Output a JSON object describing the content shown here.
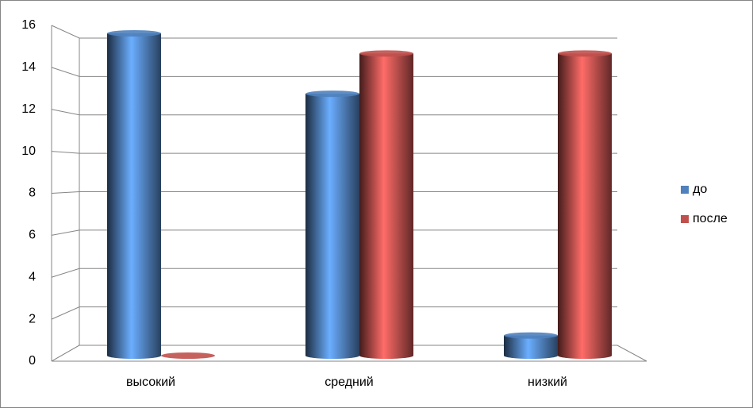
{
  "chart_data": {
    "type": "bar",
    "categories": [
      "высокий",
      "средний",
      "низкий"
    ],
    "series": [
      {
        "name": "до",
        "color": "#4f81bd",
        "values": [
          16,
          13,
          1
        ]
      },
      {
        "name": "после",
        "color": "#c0504d",
        "values": [
          0,
          15,
          15
        ]
      }
    ],
    "ylim": [
      0,
      16
    ],
    "yticks": [
      0,
      2,
      4,
      6,
      8,
      10,
      12,
      14,
      16
    ],
    "grid": true,
    "legend": "right"
  }
}
